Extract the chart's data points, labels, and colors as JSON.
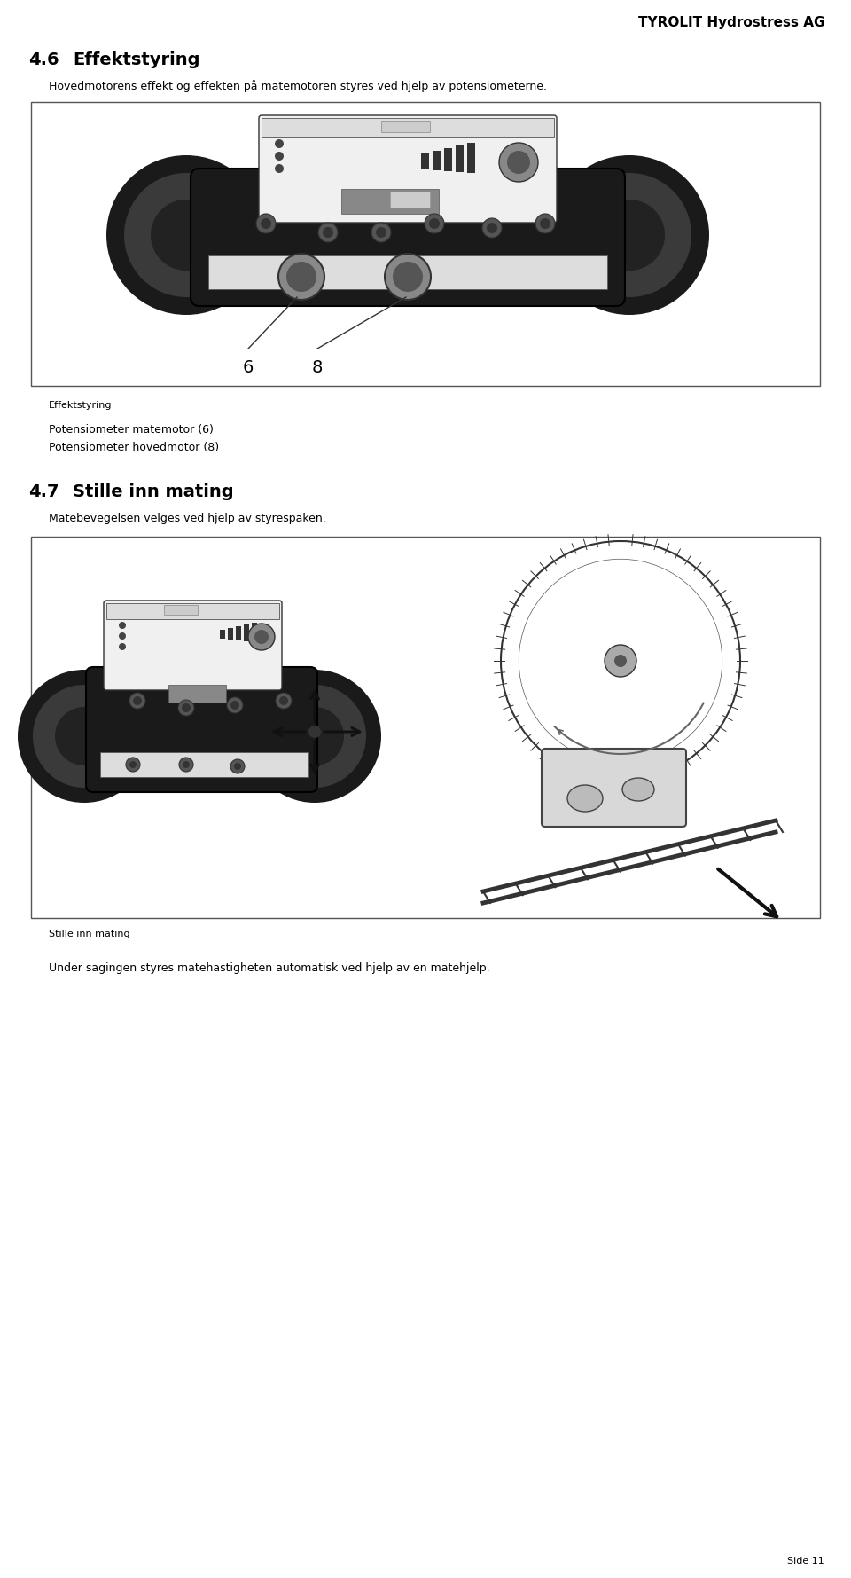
{
  "header_text": "TYROLIT Hydrostress AG",
  "section1_number": "4.6",
  "section1_title": "Effektstyring",
  "section1_body": "Hovedmotorens effekt og effekten på matemotoren styres ved hjelp av potensiometerne.",
  "fig1_caption": "Effektstyring",
  "fig1_label6": "6",
  "fig1_label8": "8",
  "bullet1": "Potensiometer matemotor (6)",
  "bullet2": "Potensiometer hovedmotor (8)",
  "section2_number": "4.7",
  "section2_title": "Stille inn mating",
  "section2_body": "Matebevegelsen velges ved hjelp av styrespaken.",
  "fig2_caption": "Stille inn mating",
  "footer_text": "Under sagingen styres matehastigheten automatisk ved hjelp av en matehjelp.",
  "page_number": "Side 11",
  "bg_color": "#ffffff",
  "text_color": "#000000",
  "header_font_size": 11,
  "section_num_font_size": 14,
  "section_title_font_size": 14,
  "body_font_size": 9,
  "caption_font_size": 8,
  "bullet_font_size": 9,
  "page_num_font_size": 8
}
